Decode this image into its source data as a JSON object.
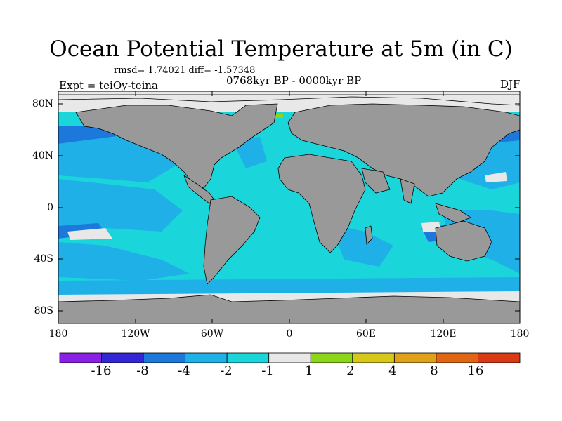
{
  "title": "Ocean Potential Temperature at 5m (in C)",
  "stats": "rmsd= 1.74021 diff= -1.57348",
  "experiment": "Expt = teiOy-teina",
  "period": "0768kyr BP - 0000kyr BP",
  "season": "DJF",
  "lat_labels": [
    "80N",
    "40N",
    "0",
    "40S",
    "80S"
  ],
  "lon_labels": [
    "180",
    "120W",
    "60W",
    "0",
    "60E",
    "120E",
    "180"
  ],
  "colorbar": {
    "labels": [
      "-16",
      "-8",
      "-4",
      "-2",
      "-1",
      "1",
      "2",
      "4",
      "8",
      "16"
    ],
    "colors": [
      "#8a1fe6",
      "#3326d6",
      "#1c79db",
      "#1fb0e8",
      "#1ad6db",
      "#e8e8e8",
      "#8cd61a",
      "#d6c81a",
      "#e0a01a",
      "#e06614",
      "#d93a14"
    ]
  },
  "colors": {
    "ocean_main": "#1ad6db",
    "ocean_cool": "#1fb0e8",
    "ocean_cold": "#1c79db",
    "land": "#999999",
    "ice": "#e8e8e8"
  }
}
